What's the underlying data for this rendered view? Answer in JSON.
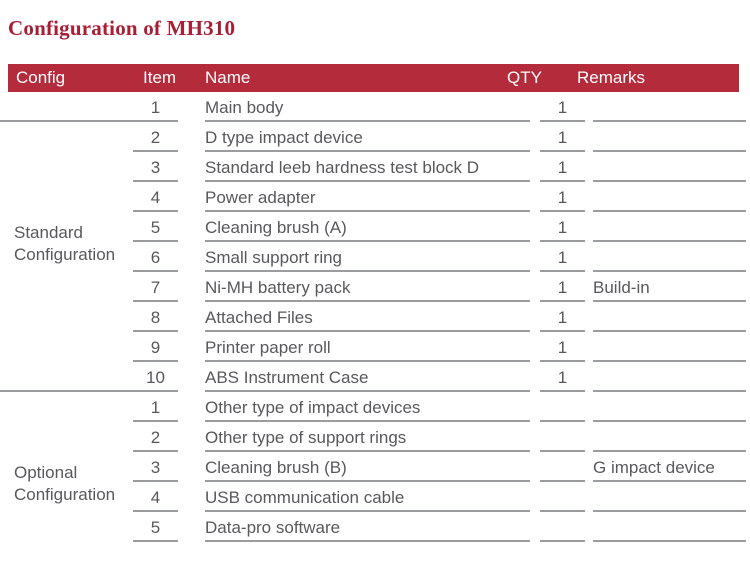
{
  "page": {
    "title": "Configuration of MH310"
  },
  "colors": {
    "title": "#A81E35",
    "header_bg": "#B42B3C",
    "header_text": "#FFFFFF",
    "text": "#58595B",
    "line": "#9A9C9F"
  },
  "table": {
    "headers": {
      "config": "Config",
      "item": "Item",
      "name": "Name",
      "qty": "QTY",
      "remarks": "Remarks"
    },
    "sections": [
      {
        "label": "Standard Configuration",
        "rows": [
          {
            "item": "1",
            "name": "Main body",
            "qty": "1",
            "remarks": ""
          },
          {
            "item": "2",
            "name": "D type impact device",
            "qty": "1",
            "remarks": ""
          },
          {
            "item": "3",
            "name": "Standard leeb hardness test block D",
            "qty": "1",
            "remarks": ""
          },
          {
            "item": "4",
            "name": "Power adapter",
            "qty": "1",
            "remarks": ""
          },
          {
            "item": "5",
            "name": "Cleaning brush (A)",
            "qty": "1",
            "remarks": ""
          },
          {
            "item": "6",
            "name": "Small support ring",
            "qty": "1",
            "remarks": ""
          },
          {
            "item": "7",
            "name": "Ni-MH battery pack",
            "qty": "1",
            "remarks": "Build-in"
          },
          {
            "item": "8",
            "name": "Attached Files",
            "qty": "1",
            "remarks": ""
          },
          {
            "item": "9",
            "name": "Printer paper roll",
            "qty": "1",
            "remarks": ""
          },
          {
            "item": "10",
            "name": "ABS Instrument Case",
            "qty": "1",
            "remarks": ""
          }
        ]
      },
      {
        "label": "Optional Configuration",
        "rows": [
          {
            "item": "1",
            "name": "Other type of impact devices",
            "qty": "",
            "remarks": ""
          },
          {
            "item": "2",
            "name": "Other type of support rings",
            "qty": "",
            "remarks": ""
          },
          {
            "item": "3",
            "name": "Cleaning brush (B)",
            "qty": "",
            "remarks": "G impact device"
          },
          {
            "item": "4",
            "name": "USB communication cable",
            "qty": "",
            "remarks": ""
          },
          {
            "item": "5",
            "name": "Data-pro software",
            "qty": "",
            "remarks": ""
          }
        ]
      }
    ]
  },
  "layout_notes": {
    "first_row_top": "92",
    "row_height": "30"
  }
}
